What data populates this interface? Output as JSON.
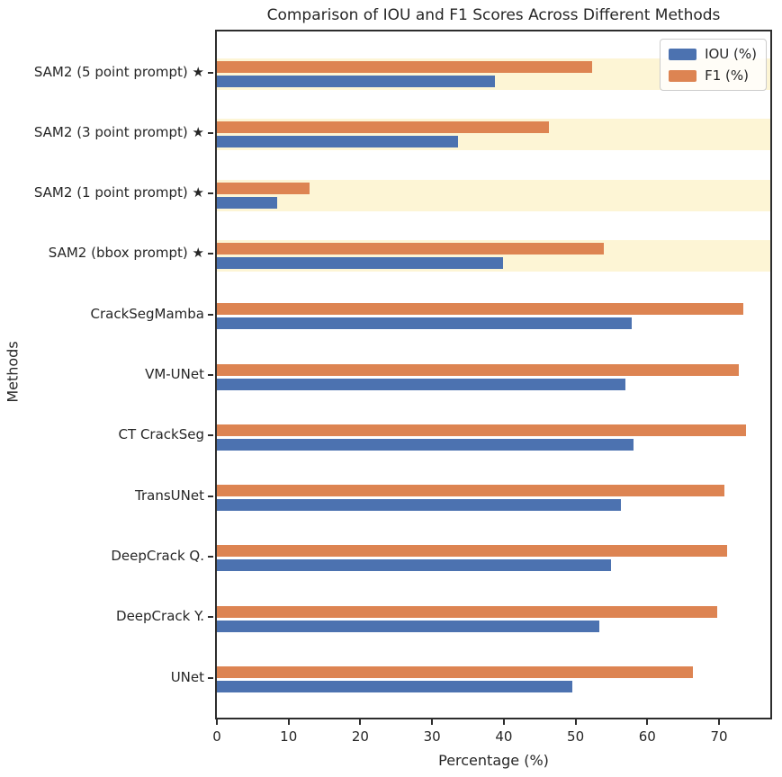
{
  "chart_data": {
    "type": "bar",
    "orientation": "horizontal",
    "title": "Comparison of IOU and F1 Scores Across Different Methods",
    "xlabel": "Percentage (%)",
    "ylabel": "Methods",
    "categories": [
      "SAM2 (5 point prompt) ★",
      "SAM2 (3 point prompt) ★",
      "SAM2 (1 point prompt) ★",
      "SAM2 (bbox prompt) ★",
      "CrackSegMamba",
      "VM-UNet",
      "CT CrackSeg",
      "TransUNet",
      "DeepCrack Q.",
      "DeepCrack Y.",
      "UNet"
    ],
    "series": [
      {
        "name": "IOU (%)",
        "color": "#4c72b0",
        "values": [
          38.7,
          33.6,
          8.4,
          39.9,
          57.8,
          57.0,
          58.1,
          56.3,
          55.0,
          53.3,
          49.5
        ]
      },
      {
        "name": "F1 (%)",
        "color": "#dd8452",
        "values": [
          52.3,
          46.3,
          12.9,
          54.0,
          73.4,
          72.8,
          73.7,
          70.7,
          71.1,
          69.7,
          66.4
        ]
      }
    ],
    "highlighted_rows": [
      0,
      1,
      2,
      3
    ],
    "highlight_color": "#fdf5d5",
    "xlim": [
      0,
      77.4
    ],
    "xticks": [
      0,
      10,
      20,
      30,
      40,
      50,
      60,
      70
    ],
    "legend": {
      "position": "upper right"
    },
    "grid": false
  }
}
